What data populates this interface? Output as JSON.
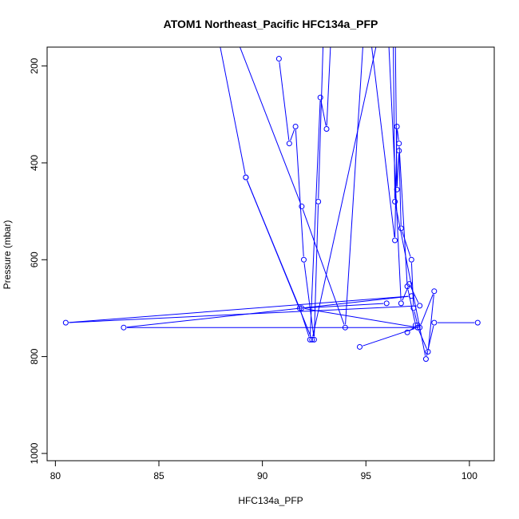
{
  "chart_data": {
    "type": "line",
    "title": "ATOM1 Northeast_Pacific HFC134a_PFP",
    "xlabel": "HFC134a_PFP",
    "ylabel": "Pressure (mbar)",
    "xlim": [
      79.6,
      101.2
    ],
    "ylim": [
      1015,
      161
    ],
    "y_reversed": true,
    "x_ticks": [
      80,
      85,
      90,
      95,
      100
    ],
    "y_ticks": [
      200,
      400,
      600,
      800,
      1000
    ],
    "grid": false,
    "legend": "none",
    "color": "#0000ff",
    "marker": "open-circle",
    "series": [
      {
        "x": [
          90.8,
          91.3,
          91.6,
          92.0,
          92.5,
          92.7,
          93.0,
          95.0,
          96.4,
          96.5,
          96.6,
          97.0,
          97.4,
          97.6,
          98.3,
          98.0,
          97.5,
          94.7
        ],
        "y": [
          185,
          360,
          325,
          600,
          765,
          480,
          60,
          60,
          560,
          325,
          360,
          655,
          735,
          740,
          665,
          790,
          740,
          780
        ]
      },
      {
        "x": [
          89.2,
          91.8,
          92.3,
          92.8,
          93.1,
          93.4,
          96.4,
          96.5,
          96.6,
          96.7,
          97.2,
          97.3,
          97.5,
          97.0
        ],
        "y": [
          430,
          700,
          765,
          265,
          330,
          60,
          60,
          455,
          375,
          535,
          600,
          700,
          735,
          750
        ]
      },
      {
        "x": [
          88.0,
          91.9,
          94.0,
          95.0,
          96.3,
          96.4,
          97.9,
          98.3,
          100.4
        ],
        "y": [
          60,
          490,
          740,
          60,
          60,
          480,
          805,
          730,
          730
        ]
      },
      {
        "x": [
          87.5,
          89.2,
          92.4,
          96.0,
          96.7,
          97.1,
          97.6,
          80.5,
          97.2,
          83.3,
          97.5,
          91.9,
          96.0
        ],
        "y": [
          60,
          430,
          765,
          60,
          690,
          650,
          695,
          730,
          675,
          740,
          740,
          700,
          690
        ]
      }
    ]
  }
}
